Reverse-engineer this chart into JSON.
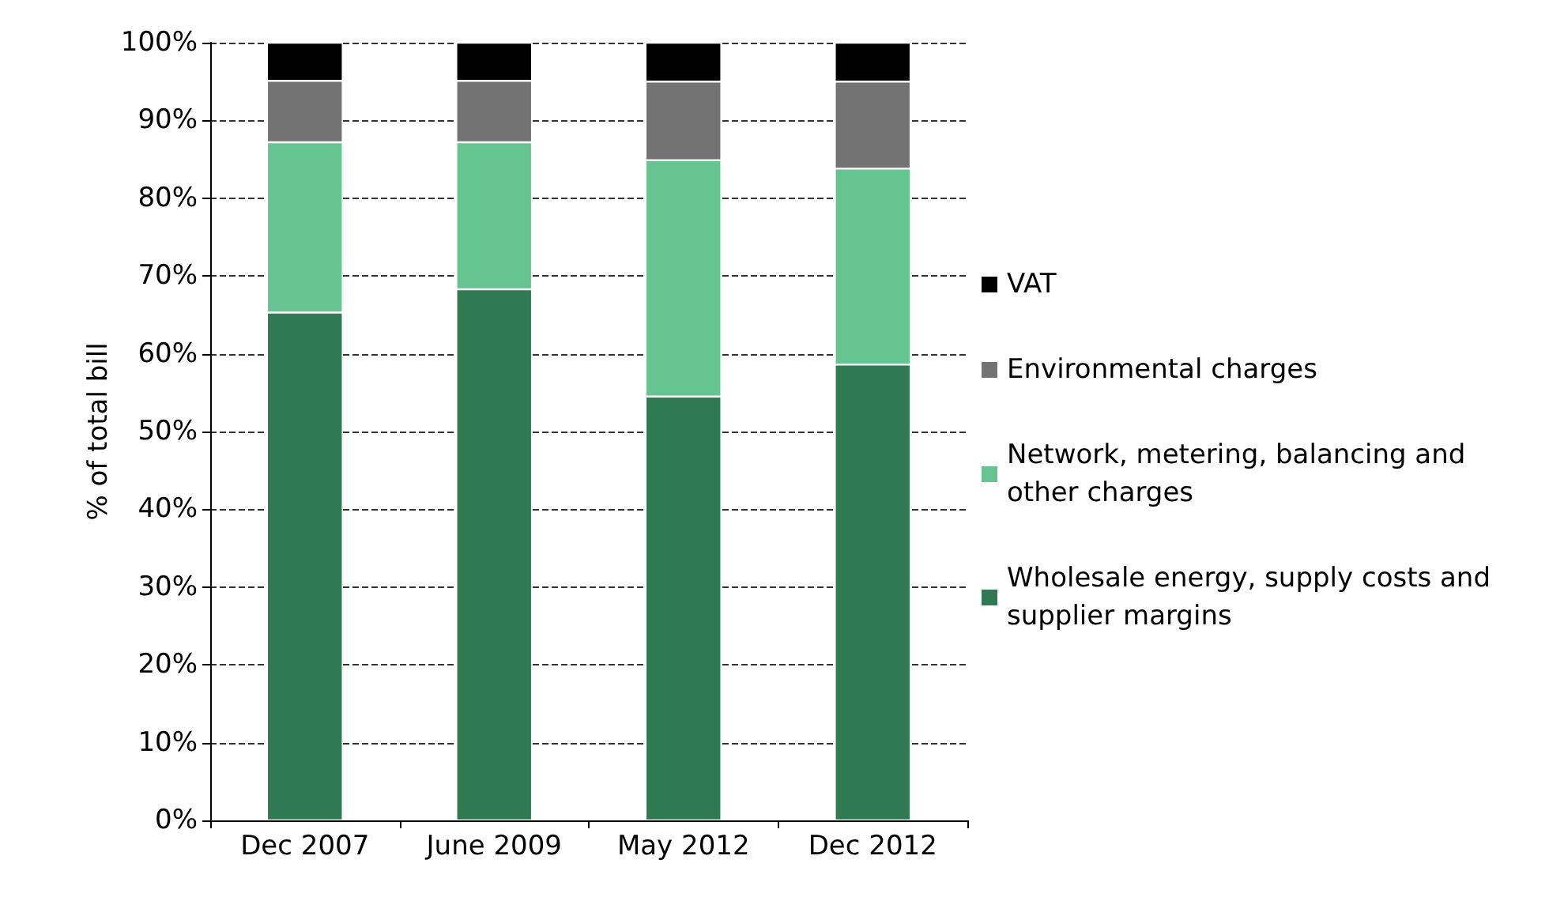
{
  "chart_data": {
    "type": "bar",
    "stacked": true,
    "ylabel": "% of total bill",
    "categories": [
      "Dec 2007",
      "June 2009",
      "May 2012",
      "Dec 2012"
    ],
    "series": [
      {
        "name": "Wholesale energy, supply costs and supplier margins",
        "color": "#2f7a52",
        "values": [
          65.3,
          68.3,
          54.5,
          58.6
        ]
      },
      {
        "name": "Network, metering, balancing and other charges",
        "color": "#66c491",
        "values": [
          21.9,
          18.9,
          30.4,
          25.2
        ]
      },
      {
        "name": "Environmental charges",
        "color": "#737373",
        "values": [
          7.9,
          7.9,
          10.1,
          11.2
        ]
      },
      {
        "name": "VAT",
        "color": "#000000",
        "values": [
          4.9,
          4.9,
          5.0,
          5.0
        ]
      }
    ],
    "ylim": [
      0,
      100
    ],
    "yticks": [
      {
        "value": 0,
        "label": "0%"
      },
      {
        "value": 10,
        "label": "10%"
      },
      {
        "value": 20,
        "label": "20%"
      },
      {
        "value": 30,
        "label": "30%"
      },
      {
        "value": 40,
        "label": "40%"
      },
      {
        "value": 50,
        "label": "50%"
      },
      {
        "value": 60,
        "label": "60%"
      },
      {
        "value": 70,
        "label": "70%"
      },
      {
        "value": 80,
        "label": "80%"
      },
      {
        "value": 90,
        "label": "90%"
      },
      {
        "value": 100,
        "label": "100%"
      }
    ],
    "grid": "y",
    "legend": "right"
  }
}
